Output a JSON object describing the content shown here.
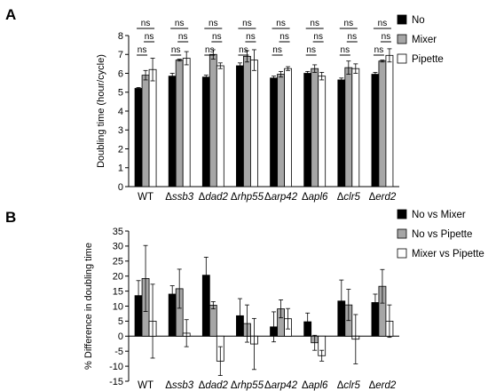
{
  "chart_data": [
    {
      "type": "bar",
      "panel": "A",
      "ylabel": "Doubling time (hour/cycle)",
      "ylim": [
        0,
        8
      ],
      "yticks": [
        0,
        1,
        2,
        3,
        4,
        5,
        6,
        7,
        8
      ],
      "categories": [
        {
          "prefix": "",
          "italic": "WT"
        },
        {
          "prefix": "Δ",
          "italic": "ssb3"
        },
        {
          "prefix": "Δ",
          "italic": "dad2"
        },
        {
          "prefix": "Δ",
          "italic": "rhp55"
        },
        {
          "prefix": "Δ",
          "italic": "arp42"
        },
        {
          "prefix": "Δ",
          "italic": "apl6"
        },
        {
          "prefix": "Δ",
          "italic": "clr5"
        },
        {
          "prefix": "Δ",
          "italic": "erd2"
        }
      ],
      "series": [
        {
          "name": "No",
          "color": "#000000",
          "values": [
            5.2,
            5.85,
            5.8,
            6.4,
            5.75,
            6.0,
            5.65,
            5.95
          ],
          "errors": [
            0.05,
            0.15,
            0.1,
            0.15,
            0.1,
            0.1,
            0.1,
            0.1
          ]
        },
        {
          "name": "Mixer",
          "color": "#a6a6a6",
          "values": [
            5.9,
            6.7,
            7.0,
            6.9,
            5.95,
            6.25,
            6.3,
            6.65
          ],
          "errors": [
            0.25,
            0.05,
            0.25,
            0.3,
            0.15,
            0.2,
            0.35,
            0.05
          ]
        },
        {
          "name": "Pipette",
          "color": "#ffffff",
          "values": [
            6.2,
            6.8,
            6.4,
            6.7,
            6.25,
            5.85,
            6.25,
            6.95
          ],
          "errors": [
            0.6,
            0.35,
            0.15,
            0.55,
            0.1,
            0.2,
            0.25,
            0.35
          ]
        }
      ],
      "significance_label": "ns",
      "legend_position": "top-right"
    },
    {
      "type": "bar",
      "panel": "B",
      "ylabel": "% Difference in doubling time",
      "ylim": [
        -15,
        35
      ],
      "yticks": [
        -15,
        -10,
        -5,
        0,
        5,
        10,
        15,
        20,
        25,
        30,
        35
      ],
      "categories": [
        {
          "prefix": "",
          "italic": "WT"
        },
        {
          "prefix": "Δ",
          "italic": "ssb3"
        },
        {
          "prefix": "Δ",
          "italic": "dad2"
        },
        {
          "prefix": "Δ",
          "italic": "rhp55"
        },
        {
          "prefix": "Δ",
          "italic": "arp42"
        },
        {
          "prefix": "Δ",
          "italic": "apl6"
        },
        {
          "prefix": "Δ",
          "italic": "clr5"
        },
        {
          "prefix": "Δ",
          "italic": "erd2"
        }
      ],
      "series": [
        {
          "name": "No vs Mixer",
          "color": "#000000",
          "values": [
            13.5,
            14.0,
            20.3,
            6.8,
            3.1,
            4.8,
            11.7,
            11.2
          ],
          "errors": [
            5.0,
            2.8,
            6.0,
            5.7,
            5.0,
            2.9,
            7.0,
            2.8
          ]
        },
        {
          "name": "No vs Pipette",
          "color": "#a6a6a6",
          "values": [
            19.2,
            15.8,
            10.3,
            4.2,
            9.1,
            -2.2,
            10.4,
            16.6
          ],
          "errors": [
            11.0,
            6.5,
            1.2,
            6.2,
            3.0,
            2.5,
            5.2,
            5.6
          ]
        },
        {
          "name": "Mixer vs Pipette",
          "color": "#ffffff",
          "values": [
            5.0,
            1.0,
            -8.3,
            -2.6,
            5.8,
            -6.5,
            -1.0,
            5.0
          ],
          "errors": [
            12.3,
            4.5,
            4.8,
            8.5,
            3.4,
            1.8,
            8.2,
            5.4
          ]
        }
      ],
      "legend_position": "top-right"
    }
  ]
}
